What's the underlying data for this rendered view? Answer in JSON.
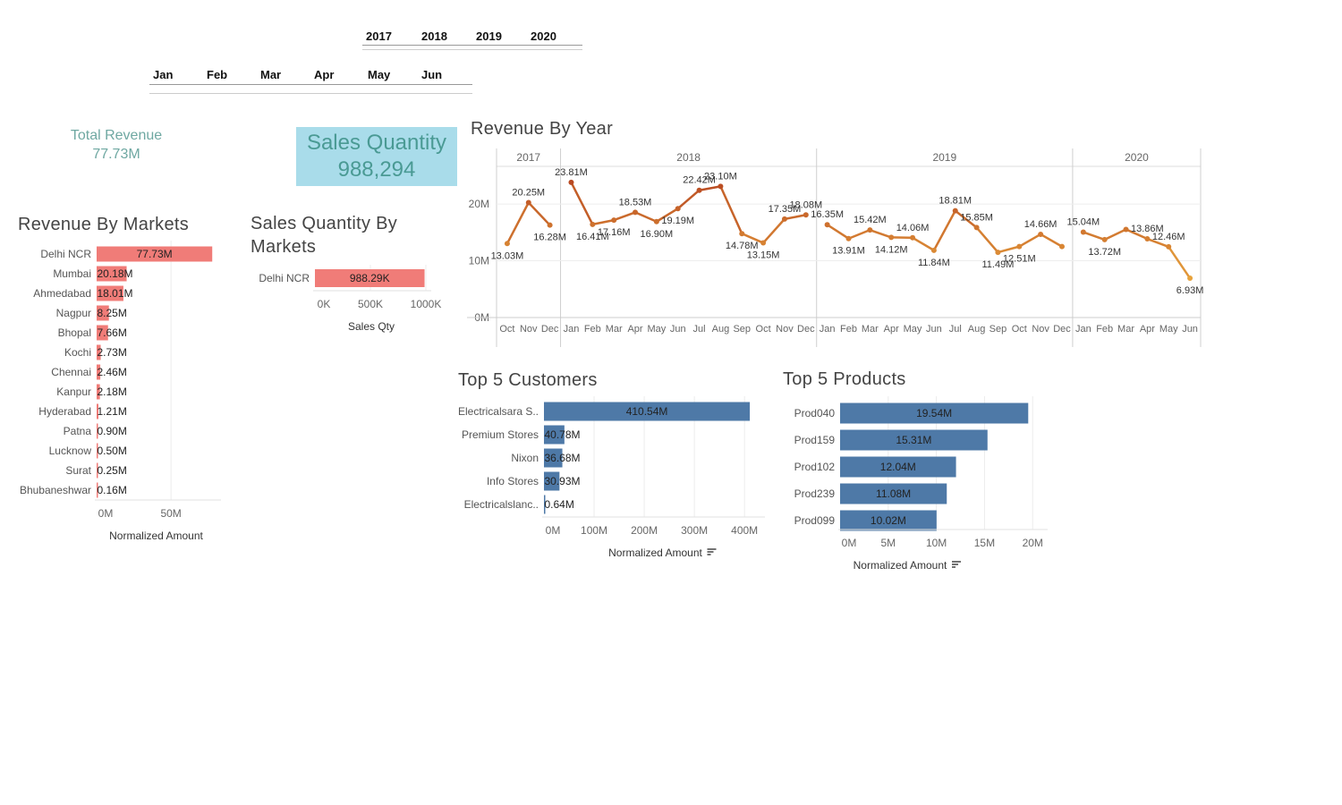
{
  "filters": {
    "years": [
      "2017",
      "2018",
      "2019",
      "2020"
    ],
    "months": [
      "Jan",
      "Feb",
      "Mar",
      "Apr",
      "May",
      "Jun"
    ]
  },
  "kpis": {
    "total_revenue_label": "Total Revenue",
    "total_revenue_value": "77.73M",
    "sales_qty_label": "Sales Quantity",
    "sales_qty_value": "988,294"
  },
  "colors": {
    "market_bar": "#f07c78",
    "customer_bar": "#4e79a7",
    "line_start": "#e8a33d",
    "line_dark": "#b94a22"
  },
  "chart_data": [
    {
      "id": "revenue-by-markets",
      "type": "bar",
      "orientation": "horizontal",
      "title": "Revenue By Markets",
      "xlabel": "Normalized Amount",
      "categories": [
        "Delhi NCR",
        "Mumbai",
        "Ahmedabad",
        "Nagpur",
        "Bhopal",
        "Kochi",
        "Chennai",
        "Kanpur",
        "Hyderabad",
        "Patna",
        "Lucknow",
        "Surat",
        "Bhubaneshwar"
      ],
      "values": [
        77.73,
        20.18,
        18.01,
        8.25,
        7.66,
        2.73,
        2.46,
        2.18,
        1.21,
        0.9,
        0.5,
        0.25,
        0.16
      ],
      "labels": [
        "77.73M",
        "20.18M",
        "18.01M",
        "8.25M",
        "7.66M",
        "2.73M",
        "2.46M",
        "2.18M",
        "1.21M",
        "0.90M",
        "0.50M",
        "0.25M",
        "0.16M"
      ],
      "xlim": [
        0,
        80
      ],
      "xticks": [
        "0M",
        "50M"
      ],
      "xtick_values": [
        0,
        50
      ]
    },
    {
      "id": "sales-qty-by-markets",
      "type": "bar",
      "orientation": "horizontal",
      "title": "Sales Quantity By Markets",
      "xlabel": "Sales Qty",
      "categories": [
        "Delhi NCR"
      ],
      "values": [
        988.29
      ],
      "labels": [
        "988.29K"
      ],
      "xlim": [
        0,
        1000
      ],
      "xticks": [
        "0K",
        "500K",
        "1000K"
      ],
      "xtick_values": [
        0,
        500,
        1000
      ]
    },
    {
      "id": "revenue-by-year",
      "type": "line",
      "title": "Revenue By Year",
      "years": [
        {
          "year": "2017",
          "months": [
            "Oct",
            "Nov",
            "Dec"
          ]
        },
        {
          "year": "2018",
          "months": [
            "Jan",
            "Feb",
            "Mar",
            "Apr",
            "May",
            "Jun",
            "Jul",
            "Aug",
            "Sep",
            "Oct",
            "Nov",
            "Dec"
          ]
        },
        {
          "year": "2019",
          "months": [
            "Jan",
            "Feb",
            "Mar",
            "Apr",
            "May",
            "Jun",
            "Jul",
            "Aug",
            "Sep",
            "Oct",
            "Nov",
            "Dec"
          ]
        },
        {
          "year": "2020",
          "months": [
            "Jan",
            "Feb",
            "Mar",
            "Apr",
            "May",
            "Jun"
          ]
        }
      ],
      "values": [
        13.03,
        20.25,
        16.28,
        23.81,
        16.41,
        17.16,
        18.53,
        16.9,
        19.19,
        22.42,
        23.1,
        14.78,
        13.15,
        17.35,
        18.08,
        16.35,
        13.91,
        15.42,
        14.12,
        14.06,
        11.84,
        18.81,
        15.85,
        11.49,
        12.51,
        14.66,
        12.51,
        15.04,
        13.72,
        15.53,
        13.86,
        12.46,
        6.93
      ],
      "labels": [
        "13.03M",
        "20.25M",
        "16.28M",
        "23.81M",
        "16.41M",
        "17.16M",
        "18.53M",
        "16.90M",
        "19.19M",
        "22.42M",
        "23.10M",
        "14.78M",
        "13.15M",
        "17.35M",
        "18.08M",
        "16.35M",
        "13.91M",
        "15.42M",
        "14.12M",
        "14.06M",
        "11.84M",
        "18.81M",
        "15.85M",
        "11.49M",
        "12.51M",
        "14.66M",
        "",
        "15.04M",
        "13.72M",
        "",
        "13.86M",
        "12.46M",
        "6.93M"
      ],
      "ylim": [
        0,
        26
      ],
      "yticks": [
        "0M",
        "10M",
        "20M"
      ],
      "ytick_values": [
        0,
        10,
        20
      ]
    },
    {
      "id": "top-5-customers",
      "type": "bar",
      "orientation": "horizontal",
      "title": "Top 5 Customers",
      "xlabel": "Normalized Amount",
      "categories": [
        "Electricalsara S..",
        "Premium Stores",
        "Nixon",
        "Info Stores",
        "Electricalslanc.."
      ],
      "values": [
        410.54,
        40.78,
        36.68,
        30.93,
        0.64
      ],
      "labels": [
        "410.54M",
        "40.78M",
        "36.68M",
        "30.93M",
        "0.64M"
      ],
      "xlim": [
        0,
        430
      ],
      "xticks": [
        "0M",
        "100M",
        "200M",
        "300M",
        "400M"
      ],
      "xtick_values": [
        0,
        100,
        200,
        300,
        400
      ]
    },
    {
      "id": "top-5-products",
      "type": "bar",
      "orientation": "horizontal",
      "title": "Top 5 Products",
      "xlabel": "Normalized Amount",
      "categories": [
        "Prod040",
        "Prod159",
        "Prod102",
        "Prod239",
        "Prod099"
      ],
      "values": [
        19.54,
        15.31,
        12.04,
        11.08,
        10.02
      ],
      "labels": [
        "19.54M",
        "15.31M",
        "12.04M",
        "11.08M",
        "10.02M"
      ],
      "xlim": [
        0,
        21
      ],
      "xticks": [
        "0M",
        "5M",
        "10M",
        "15M",
        "20M"
      ],
      "xtick_values": [
        0,
        5,
        10,
        15,
        20
      ]
    }
  ]
}
